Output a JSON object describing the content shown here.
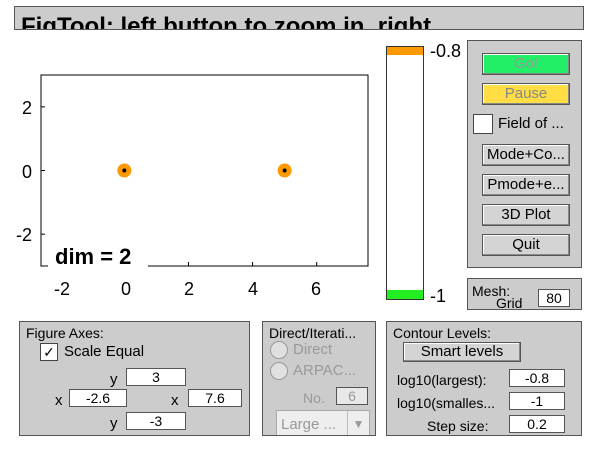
{
  "title": "FigTool: left button to zoom in, right",
  "plot": {
    "dim_label": "dim = 2",
    "x_ticks": [
      "-2",
      "0",
      "2",
      "4",
      "6"
    ],
    "y_ticks": [
      "2",
      "0",
      "-2"
    ],
    "points": [
      {
        "x": 0,
        "y": 0
      },
      {
        "x": 5,
        "y": 0
      }
    ],
    "marker_color": "#ff9900",
    "xlim": [
      -2.6,
      7.6
    ],
    "ylim": [
      -3,
      3
    ]
  },
  "colorbar": {
    "top_label": "-0.8",
    "bottom_label": "-1",
    "top_color": "#ff9900",
    "bottom_color": "#22ee22"
  },
  "controls": {
    "go": "Go!",
    "pause": "Pause",
    "field_of": "Field of ...",
    "mode_co": "Mode+Co...",
    "pmode_e": "Pmode+e...",
    "plot3d": "3D Plot",
    "quit": "Quit"
  },
  "mesh": {
    "label": "Mesh:",
    "grid_label": "Grid",
    "grid_value": "80"
  },
  "figure_axes": {
    "title": "Figure Axes:",
    "scale_equal": "Scale Equal",
    "scale_checked": "✓",
    "y_label_top": "y",
    "y_max": "3",
    "x_label_left": "x",
    "x_min": "-2.6",
    "x_label_right": "x",
    "x_max": "7.6",
    "y_label_bottom": "y",
    "y_min": "-3"
  },
  "direct": {
    "title": "Direct/Iterati...",
    "direct": "Direct",
    "arpack": "ARPAC...",
    "no_label": "No.",
    "no_value": "6",
    "size_select": "Large ..."
  },
  "contour": {
    "title": "Contour Levels:",
    "smart_levels": "Smart  levels",
    "largest_label": "log10(largest):",
    "largest_value": "-0.8",
    "smallest_label": "log10(smalles...",
    "smallest_value": "-1",
    "step_label": "Step size:",
    "step_value": "0.2"
  }
}
